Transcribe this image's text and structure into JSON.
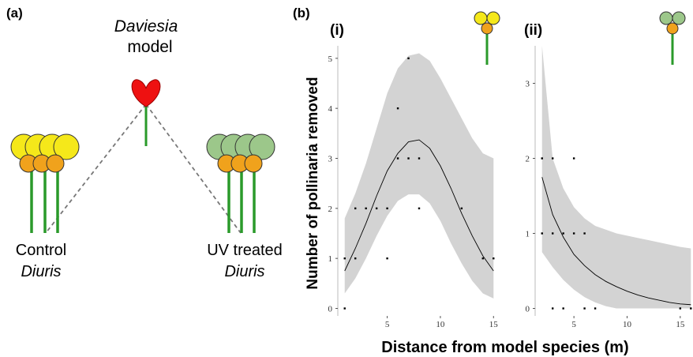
{
  "panel_a": {
    "label": "(a)",
    "model_name": "Daviesia",
    "model_word": "model",
    "control_line1": "Control",
    "control_line2": "Diuris",
    "uv_line1": "UV treated",
    "uv_line2": "Diuris"
  },
  "panel_b_label": "(b)",
  "chart_data": [
    {
      "type": "scatter",
      "title": "(i)",
      "xlabel": "Distance from model species (m)",
      "ylabel": "Number of pollinaria removed",
      "xlim": [
        0.5,
        15.5
      ],
      "ylim": [
        -0.15,
        5.25
      ],
      "xticks": [
        5,
        10,
        15
      ],
      "yticks": [
        0,
        1,
        2,
        3,
        4,
        5
      ],
      "points": {
        "x": [
          1,
          1,
          2,
          2,
          3,
          4,
          5,
          5,
          6,
          6,
          7,
          7,
          8,
          8,
          12,
          14,
          15
        ],
        "y": [
          0,
          1,
          1,
          2,
          2,
          2,
          2,
          1,
          3,
          4,
          5,
          3,
          3,
          2,
          2,
          1,
          1
        ]
      },
      "curve": {
        "x": [
          1,
          2,
          3,
          4,
          5,
          6,
          7,
          8,
          9,
          10,
          11,
          12,
          13,
          14,
          15
        ],
        "fit": [
          0.75,
          1.2,
          1.7,
          2.25,
          2.75,
          3.1,
          3.33,
          3.37,
          3.2,
          2.85,
          2.4,
          1.9,
          1.45,
          1.05,
          0.75
        ],
        "lower": [
          0.3,
          0.6,
          1.0,
          1.45,
          1.85,
          2.15,
          2.28,
          2.28,
          2.1,
          1.75,
          1.3,
          0.9,
          0.55,
          0.3,
          0.2
        ],
        "upper": [
          1.8,
          2.3,
          2.9,
          3.6,
          4.3,
          4.8,
          5.05,
          5.1,
          4.95,
          4.6,
          4.2,
          3.8,
          3.4,
          3.1,
          3.0
        ]
      },
      "point_color": "#000000",
      "line_color": "#000000",
      "band_color": "#d3d3d3"
    },
    {
      "type": "scatter",
      "title": "(ii)",
      "xlim": [
        1.5,
        16.2
      ],
      "ylim": [
        -0.1,
        3.5
      ],
      "xticks": [
        5,
        10,
        15
      ],
      "yticks": [
        0,
        1,
        2,
        3
      ],
      "points": {
        "x": [
          2,
          2,
          3,
          3,
          3,
          4,
          4,
          5,
          5,
          6,
          6,
          7,
          15,
          16
        ],
        "y": [
          2,
          1,
          2,
          1,
          0,
          1,
          0,
          2,
          1,
          1,
          0,
          0,
          0,
          0
        ]
      },
      "curve": {
        "x": [
          2,
          3,
          4,
          5,
          6,
          7,
          8,
          9,
          10,
          11,
          12,
          13,
          14,
          15,
          16
        ],
        "fit": [
          1.75,
          1.25,
          0.95,
          0.72,
          0.57,
          0.45,
          0.36,
          0.29,
          0.23,
          0.18,
          0.14,
          0.11,
          0.08,
          0.06,
          0.05
        ],
        "lower": [
          0.75,
          0.55,
          0.38,
          0.25,
          0.15,
          0.08,
          0.03,
          0,
          0,
          0,
          0,
          0,
          0,
          0,
          0
        ],
        "upper": [
          3.5,
          2.0,
          1.6,
          1.35,
          1.2,
          1.1,
          1.05,
          1.0,
          0.97,
          0.94,
          0.91,
          0.88,
          0.85,
          0.82,
          0.8
        ]
      },
      "point_color": "#000000",
      "line_color": "#000000",
      "band_color": "#d3d3d3"
    }
  ]
}
